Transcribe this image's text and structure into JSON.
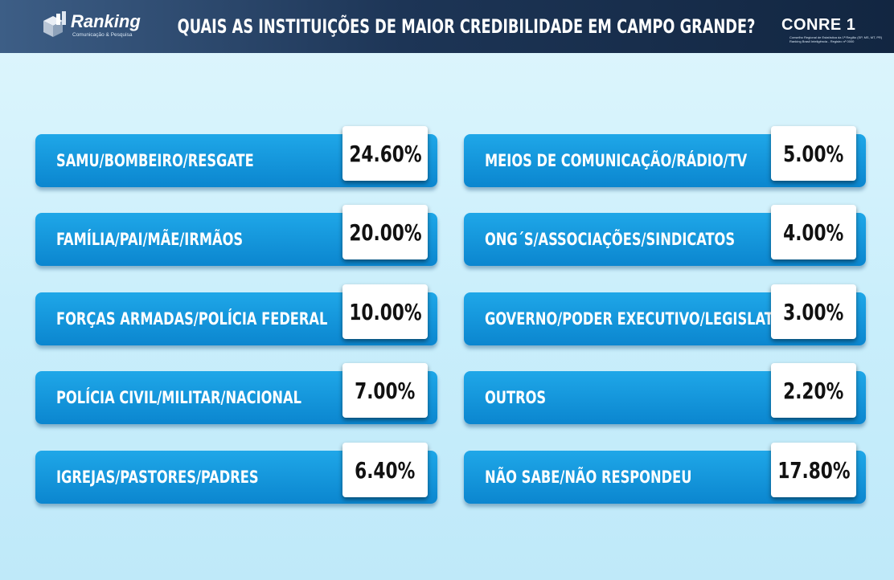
{
  "header": {
    "title": "QUAIS AS INSTITUIÇÕES DE MAIOR CREDIBILIDADE EM CAMPO GRANDE?",
    "logo_left": {
      "name": "Ranking",
      "tagline": "Comunicação & Pesquisa"
    },
    "logo_right": {
      "name": "CONRE 1",
      "line1": "Conselho Regional de Estatística da 1ª Região (SP, MS, MT, PR)",
      "line2": "Ranking Brasil Inteligência - Registro nº 0000"
    },
    "colors": {
      "header": "#1d3556",
      "text": "#ffffff"
    }
  },
  "chart_data": {
    "type": "table",
    "title": "QUAIS AS INSTITUIÇÕES DE MAIOR CREDIBILIDADE EM CAMPO GRANDE?",
    "unit": "%",
    "columns": [
      [
        {
          "label": "SAMU/BOMBEIRO/RESGATE",
          "value": 24.6,
          "display": "24.60%"
        },
        {
          "label": "FAMÍLIA/PAI/MÃE/IRMÃOS",
          "value": 20.0,
          "display": "20.00%"
        },
        {
          "label": "FORÇAS ARMADAS/POLÍCIA FEDERAL",
          "value": 10.0,
          "display": "10.00%"
        },
        {
          "label": "POLÍCIA CIVIL/MILITAR/NACIONAL",
          "value": 7.0,
          "display": "7.00%"
        },
        {
          "label": "IGREJAS/PASTORES/PADRES",
          "value": 6.4,
          "display": "6.40%"
        }
      ],
      [
        {
          "label": "MEIOS DE COMUNICAÇÃO/RÁDIO/TV",
          "value": 5.0,
          "display": "5.00%"
        },
        {
          "label": "ONG´S/ASSOCIAÇÕES/SINDICATOS",
          "value": 4.0,
          "display": "4.00%"
        },
        {
          "label": "GOVERNO/PODER EXECUTIVO/LEGISLATIVO",
          "value": 3.0,
          "display": "3.00%"
        },
        {
          "label": "OUTROS",
          "value": 2.2,
          "display": "2.20%"
        },
        {
          "label": "NÃO SABE/NÃO RESPONDEU",
          "value": 17.8,
          "display": "17.80%"
        }
      ]
    ],
    "colors": {
      "bar": "#0e8fd6",
      "value_box": "#ffffff",
      "label_text": "#ffffff",
      "value_text": "#111111"
    }
  }
}
